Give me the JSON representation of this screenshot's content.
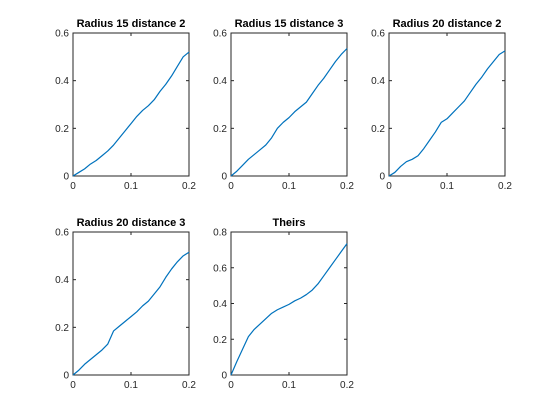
{
  "chart_data": [
    {
      "type": "line",
      "title": "Radius 15 distance 2",
      "xlabel": "",
      "ylabel": "",
      "xlim": [
        0,
        0.2
      ],
      "ylim": [
        0,
        0.6
      ],
      "xticks": [
        "0",
        "0.1",
        "0.2"
      ],
      "yticks": [
        "0",
        "0.2",
        "0.4",
        "0.6"
      ],
      "grid": false,
      "series": [
        {
          "color": "#0072BD",
          "x": [
            0,
            0.01,
            0.02,
            0.03,
            0.04,
            0.05,
            0.06,
            0.07,
            0.08,
            0.09,
            0.1,
            0.11,
            0.12,
            0.13,
            0.14,
            0.15,
            0.16,
            0.17,
            0.18,
            0.19,
            0.2
          ],
          "y": [
            0,
            0.015,
            0.03,
            0.05,
            0.065,
            0.085,
            0.105,
            0.13,
            0.16,
            0.19,
            0.22,
            0.25,
            0.275,
            0.295,
            0.32,
            0.355,
            0.385,
            0.42,
            0.46,
            0.5,
            0.52
          ]
        }
      ]
    },
    {
      "type": "line",
      "title": "Radius 15 distance 3",
      "xlabel": "",
      "ylabel": "",
      "xlim": [
        0,
        0.2
      ],
      "ylim": [
        0,
        0.6
      ],
      "xticks": [
        "0",
        "0.1",
        "0.2"
      ],
      "yticks": [
        "0",
        "0.2",
        "0.4",
        "0.6"
      ],
      "grid": false,
      "series": [
        {
          "color": "#0072BD",
          "x": [
            0,
            0.01,
            0.02,
            0.03,
            0.04,
            0.05,
            0.06,
            0.07,
            0.08,
            0.09,
            0.1,
            0.11,
            0.12,
            0.13,
            0.14,
            0.15,
            0.16,
            0.17,
            0.18,
            0.19,
            0.2
          ],
          "y": [
            0,
            0.02,
            0.045,
            0.07,
            0.09,
            0.11,
            0.13,
            0.16,
            0.2,
            0.225,
            0.245,
            0.27,
            0.29,
            0.31,
            0.345,
            0.38,
            0.41,
            0.445,
            0.48,
            0.51,
            0.535
          ]
        }
      ]
    },
    {
      "type": "line",
      "title": "Radius 20 distance 2",
      "xlabel": "",
      "ylabel": "",
      "xlim": [
        0,
        0.2
      ],
      "ylim": [
        0,
        0.6
      ],
      "xticks": [
        "0",
        "0.1",
        "0.2"
      ],
      "yticks": [
        "0",
        "0.2",
        "0.4",
        "0.6"
      ],
      "grid": false,
      "series": [
        {
          "color": "#0072BD",
          "x": [
            0,
            0.01,
            0.02,
            0.03,
            0.04,
            0.05,
            0.06,
            0.07,
            0.08,
            0.09,
            0.1,
            0.11,
            0.12,
            0.13,
            0.14,
            0.15,
            0.16,
            0.17,
            0.18,
            0.19,
            0.2
          ],
          "y": [
            0,
            0.015,
            0.04,
            0.06,
            0.07,
            0.085,
            0.115,
            0.15,
            0.185,
            0.225,
            0.24,
            0.265,
            0.29,
            0.315,
            0.35,
            0.385,
            0.415,
            0.45,
            0.48,
            0.51,
            0.525
          ]
        }
      ]
    },
    {
      "type": "line",
      "title": "Radius 20 distance 3",
      "xlabel": "",
      "ylabel": "",
      "xlim": [
        0,
        0.2
      ],
      "ylim": [
        0,
        0.6
      ],
      "xticks": [
        "0",
        "0.1",
        "0.2"
      ],
      "yticks": [
        "0",
        "0.2",
        "0.4",
        "0.6"
      ],
      "grid": false,
      "series": [
        {
          "color": "#0072BD",
          "x": [
            0,
            0.01,
            0.02,
            0.03,
            0.04,
            0.05,
            0.06,
            0.07,
            0.08,
            0.09,
            0.1,
            0.11,
            0.12,
            0.13,
            0.14,
            0.15,
            0.16,
            0.17,
            0.18,
            0.19,
            0.2
          ],
          "y": [
            0,
            0.02,
            0.045,
            0.065,
            0.085,
            0.105,
            0.13,
            0.185,
            0.205,
            0.225,
            0.245,
            0.265,
            0.29,
            0.31,
            0.34,
            0.37,
            0.41,
            0.445,
            0.475,
            0.5,
            0.515
          ]
        }
      ]
    },
    {
      "type": "line",
      "title": "Theirs",
      "xlabel": "",
      "ylabel": "",
      "xlim": [
        0,
        0.2
      ],
      "ylim": [
        0,
        0.8
      ],
      "xticks": [
        "0",
        "0.1",
        "0.2"
      ],
      "yticks": [
        "0",
        "0.2",
        "0.4",
        "0.6",
        "0.8"
      ],
      "grid": false,
      "series": [
        {
          "color": "#0072BD",
          "x": [
            0,
            0.01,
            0.02,
            0.03,
            0.04,
            0.05,
            0.06,
            0.07,
            0.08,
            0.09,
            0.1,
            0.11,
            0.12,
            0.13,
            0.14,
            0.15,
            0.16,
            0.17,
            0.18,
            0.19,
            0.2
          ],
          "y": [
            0,
            0.075,
            0.145,
            0.215,
            0.255,
            0.285,
            0.315,
            0.345,
            0.365,
            0.38,
            0.395,
            0.415,
            0.43,
            0.45,
            0.475,
            0.51,
            0.555,
            0.6,
            0.645,
            0.69,
            0.735
          ]
        }
      ]
    }
  ]
}
